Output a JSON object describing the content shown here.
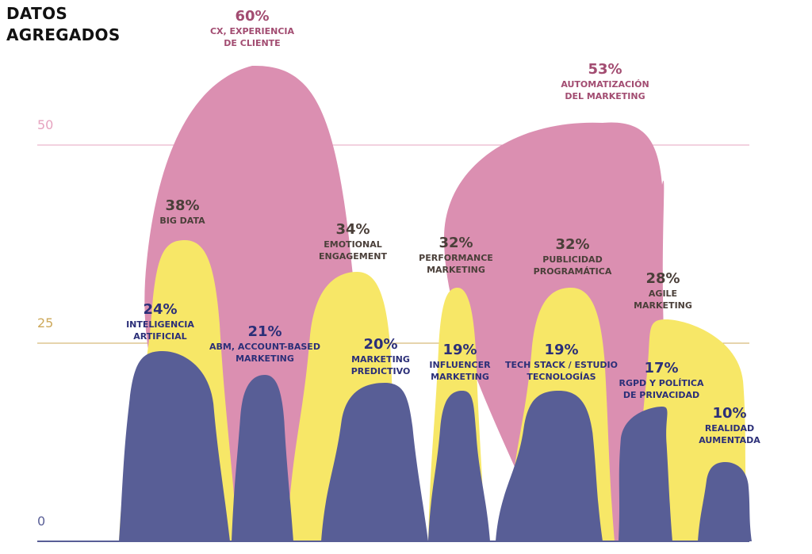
{
  "title": [
    "DATOS",
    "AGREGADOS"
  ],
  "colors": {
    "pink": "#DB8FB1",
    "yellow": "#F7E767",
    "navy": "#585E96",
    "pink_text": "#A24C71",
    "navy_text": "#2B2F78",
    "dark_text": "#4A3F39",
    "tick_50": "#E6A3BF",
    "tick_25": "#CDA85A",
    "tick_0": "#5A5F97"
  },
  "chart_data": {
    "type": "area",
    "ylim": [
      0,
      68
    ],
    "yticks": [
      {
        "value": 50,
        "label": "50"
      },
      {
        "value": 25,
        "label": "25"
      },
      {
        "value": 0,
        "label": "0"
      }
    ],
    "grid": true,
    "items": [
      {
        "id": "cx",
        "pct_label": "60%",
        "value": 60,
        "name_lines": [
          "CX, EXPERIENCIA",
          "DE CLIENTE"
        ],
        "color": "pink"
      },
      {
        "id": "auto",
        "pct_label": "53%",
        "value": 53,
        "name_lines": [
          "AUTOMATIZACIÓN",
          "DEL MARKETING"
        ],
        "color": "pink"
      },
      {
        "id": "bigdata",
        "pct_label": "38%",
        "value": 38,
        "name_lines": [
          "BIG DATA"
        ],
        "color": "yellow"
      },
      {
        "id": "emotional",
        "pct_label": "34%",
        "value": 34,
        "name_lines": [
          "EMOTIONAL",
          "ENGAGEMENT"
        ],
        "color": "yellow"
      },
      {
        "id": "performance",
        "pct_label": "32%",
        "value": 32,
        "name_lines": [
          "PERFORMANCE",
          "MARKETING"
        ],
        "color": "yellow"
      },
      {
        "id": "programatica",
        "pct_label": "32%",
        "value": 32,
        "name_lines": [
          "PUBLICIDAD",
          "PROGRAMÁTICA"
        ],
        "color": "yellow"
      },
      {
        "id": "agile",
        "pct_label": "28%",
        "value": 28,
        "name_lines": [
          "AGILE",
          "MARKETING"
        ],
        "color": "yellow"
      },
      {
        "id": "ia",
        "pct_label": "24%",
        "value": 24,
        "name_lines": [
          "INTELIGENCIA",
          "ARTIFICIAL"
        ],
        "color": "navy"
      },
      {
        "id": "abm",
        "pct_label": "21%",
        "value": 21,
        "name_lines": [
          "ABM, ACCOUNT-BASED",
          "MARKETING"
        ],
        "color": "navy"
      },
      {
        "id": "predictivo",
        "pct_label": "20%",
        "value": 20,
        "name_lines": [
          "MARKETING",
          "PREDICTIVO"
        ],
        "color": "navy"
      },
      {
        "id": "influencer",
        "pct_label": "19%",
        "value": 19,
        "name_lines": [
          "INFLUENCER",
          "MARKETING"
        ],
        "color": "navy"
      },
      {
        "id": "techstack",
        "pct_label": "19%",
        "value": 19,
        "name_lines": [
          "TECH STACK / ESTUDIO",
          "TECNOLOGÍAS"
        ],
        "color": "navy"
      },
      {
        "id": "rgpd",
        "pct_label": "17%",
        "value": 17,
        "name_lines": [
          "RGPD Y POLÍTICA",
          "DE PRIVACIDAD"
        ],
        "color": "navy"
      },
      {
        "id": "ar",
        "pct_label": "10%",
        "value": 10,
        "name_lines": [
          "REALIDAD",
          "AUMENTADA"
        ],
        "color": "navy"
      }
    ]
  }
}
